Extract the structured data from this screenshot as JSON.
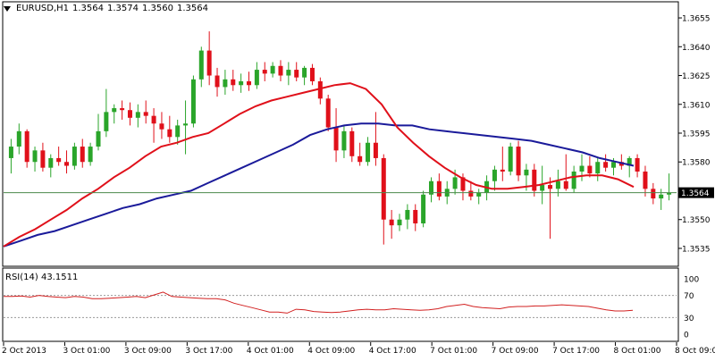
{
  "header": {
    "symbol": "EURUSD,H1",
    "open": "1.3564",
    "high": "1.3574",
    "low": "1.3560",
    "close": "1.3564"
  },
  "rsi": {
    "label": "RSI(14) 43.1511",
    "levels": [
      "100",
      "70",
      "30",
      "0"
    ]
  },
  "current_price": "1.3564",
  "colors": {
    "bull": "#2aa52a",
    "bear": "#e0101a",
    "ma_fast": "#e0101a",
    "ma_slow": "#1a1a9a",
    "rsi": "#d22020",
    "price_line": "#4c8a4c"
  },
  "chart_data": [
    {
      "type": "candlestick",
      "title": "EURUSD,H1",
      "y_ticks": [
        "1.3655",
        "1.3640",
        "1.3625",
        "1.3610",
        "1.3595",
        "1.3580",
        "1.3565",
        "1.3550",
        "1.3535"
      ],
      "ylim": [
        1.3528,
        1.3662
      ],
      "x_ticks": [
        "2 Oct 2013",
        "3 Oct 01:00",
        "3 Oct 09:00",
        "3 Oct 17:00",
        "4 Oct 01:00",
        "4 Oct 09:00",
        "4 Oct 17:00",
        "7 Oct 01:00",
        "7 Oct 09:00",
        "7 Oct 17:00",
        "8 Oct 01:00",
        "8 Oct 09:00"
      ],
      "candles": [
        [
          1.3582,
          1.3592,
          1.3574,
          1.3588
        ],
        [
          1.3588,
          1.36,
          1.3584,
          1.3596
        ],
        [
          1.3596,
          1.3597,
          1.3577,
          1.358
        ],
        [
          1.358,
          1.3588,
          1.3575,
          1.3586
        ],
        [
          1.3586,
          1.359,
          1.3575,
          1.3577
        ],
        [
          1.3577,
          1.3584,
          1.3572,
          1.3582
        ],
        [
          1.3582,
          1.3588,
          1.3578,
          1.358
        ],
        [
          1.358,
          1.3586,
          1.3574,
          1.3578
        ],
        [
          1.3578,
          1.359,
          1.3576,
          1.3588
        ],
        [
          1.3588,
          1.3592,
          1.3577,
          1.358
        ],
        [
          1.358,
          1.359,
          1.3578,
          1.3588
        ],
        [
          1.3588,
          1.3605,
          1.3586,
          1.3596
        ],
        [
          1.3596,
          1.3618,
          1.3593,
          1.3606
        ],
        [
          1.3606,
          1.361,
          1.36,
          1.3608
        ],
        [
          1.3608,
          1.3612,
          1.3602,
          1.3607
        ],
        [
          1.3607,
          1.3611,
          1.3599,
          1.3603
        ],
        [
          1.3603,
          1.361,
          1.3598,
          1.3606
        ],
        [
          1.3606,
          1.3612,
          1.36,
          1.3604
        ],
        [
          1.3604,
          1.3608,
          1.359,
          1.36
        ],
        [
          1.36,
          1.3606,
          1.3592,
          1.3597
        ],
        [
          1.3597,
          1.3604,
          1.359,
          1.3593
        ],
        [
          1.3593,
          1.3602,
          1.3589,
          1.3599
        ],
        [
          1.3599,
          1.3612,
          1.3584,
          1.36
        ],
        [
          1.36,
          1.3625,
          1.3598,
          1.3623
        ],
        [
          1.3623,
          1.364,
          1.3619,
          1.3638
        ],
        [
          1.3638,
          1.3648,
          1.362,
          1.3625
        ],
        [
          1.3625,
          1.3629,
          1.3614,
          1.3619
        ],
        [
          1.3619,
          1.3628,
          1.3615,
          1.3623
        ],
        [
          1.3623,
          1.3628,
          1.3617,
          1.362
        ],
        [
          1.362,
          1.3626,
          1.3616,
          1.3622
        ],
        [
          1.3622,
          1.3627,
          1.3617,
          1.362
        ],
        [
          1.362,
          1.3632,
          1.3618,
          1.3628
        ],
        [
          1.3628,
          1.3632,
          1.3622,
          1.3626
        ],
        [
          1.3626,
          1.3632,
          1.3624,
          1.363
        ],
        [
          1.363,
          1.3633,
          1.3622,
          1.3625
        ],
        [
          1.3625,
          1.3632,
          1.362,
          1.3628
        ],
        [
          1.3628,
          1.3632,
          1.3622,
          1.3624
        ],
        [
          1.3624,
          1.363,
          1.362,
          1.3629
        ],
        [
          1.3629,
          1.3631,
          1.362,
          1.3622
        ],
        [
          1.3622,
          1.3624,
          1.361,
          1.3613
        ],
        [
          1.3613,
          1.3615,
          1.3596,
          1.3598
        ],
        [
          1.3598,
          1.3608,
          1.358,
          1.3586
        ],
        [
          1.3586,
          1.3599,
          1.3582,
          1.3596
        ],
        [
          1.3596,
          1.3598,
          1.358,
          1.3583
        ],
        [
          1.3583,
          1.359,
          1.3578,
          1.358
        ],
        [
          1.358,
          1.3593,
          1.3578,
          1.359
        ],
        [
          1.359,
          1.3606,
          1.3578,
          1.3582
        ],
        [
          1.3582,
          1.3584,
          1.3537,
          1.355
        ],
        [
          1.355,
          1.3555,
          1.354,
          1.3547
        ],
        [
          1.3547,
          1.3553,
          1.3544,
          1.355
        ],
        [
          1.355,
          1.3558,
          1.3545,
          1.3555
        ],
        [
          1.3555,
          1.3558,
          1.3544,
          1.3548
        ],
        [
          1.3548,
          1.3565,
          1.3546,
          1.3563
        ],
        [
          1.3563,
          1.3572,
          1.3559,
          1.357
        ],
        [
          1.357,
          1.3574,
          1.356,
          1.3562
        ],
        [
          1.3562,
          1.357,
          1.3558,
          1.3566
        ],
        [
          1.3566,
          1.3576,
          1.3563,
          1.3572
        ],
        [
          1.3572,
          1.3574,
          1.356,
          1.3565
        ],
        [
          1.3565,
          1.357,
          1.356,
          1.3562
        ],
        [
          1.3562,
          1.3566,
          1.3558,
          1.3564
        ],
        [
          1.3564,
          1.3573,
          1.356,
          1.357
        ],
        [
          1.357,
          1.3578,
          1.3565,
          1.3576
        ],
        [
          1.3576,
          1.3588,
          1.357,
          1.3575
        ],
        [
          1.3575,
          1.359,
          1.3573,
          1.3588
        ],
        [
          1.3588,
          1.3591,
          1.357,
          1.3573
        ],
        [
          1.3573,
          1.3579,
          1.3565,
          1.3576
        ],
        [
          1.3576,
          1.3579,
          1.3562,
          1.3565
        ],
        [
          1.3565,
          1.3578,
          1.3558,
          1.3568
        ],
        [
          1.3568,
          1.3572,
          1.354,
          1.3566
        ],
        [
          1.3566,
          1.3576,
          1.3562,
          1.357
        ],
        [
          1.357,
          1.3584,
          1.3565,
          1.3566
        ],
        [
          1.3566,
          1.3578,
          1.3564,
          1.3575
        ],
        [
          1.3575,
          1.3584,
          1.357,
          1.3578
        ],
        [
          1.3578,
          1.3583,
          1.3572,
          1.3574
        ],
        [
          1.3574,
          1.3582,
          1.357,
          1.358
        ],
        [
          1.358,
          1.3584,
          1.3575,
          1.3577
        ],
        [
          1.3577,
          1.3582,
          1.3573,
          1.358
        ],
        [
          1.358,
          1.3584,
          1.3576,
          1.3578
        ],
        [
          1.3578,
          1.3583,
          1.3572,
          1.3582
        ],
        [
          1.3582,
          1.3584,
          1.3572,
          1.3575
        ],
        [
          1.3575,
          1.3578,
          1.3562,
          1.3566
        ],
        [
          1.3566,
          1.3569,
          1.3558,
          1.3561
        ],
        [
          1.3561,
          1.3566,
          1.3555,
          1.3563
        ],
        [
          1.3563,
          1.3574,
          1.356,
          1.3564
        ]
      ],
      "ma_fast": [
        1.3536,
        1.3541,
        1.3545,
        1.355,
        1.3555,
        1.3561,
        1.3566,
        1.3572,
        1.3577,
        1.3583,
        1.3588,
        1.359,
        1.3593,
        1.3595,
        1.36,
        1.3605,
        1.3609,
        1.3612,
        1.3614,
        1.3616,
        1.3618,
        1.362,
        1.3621,
        1.3618,
        1.361,
        1.3598,
        1.359,
        1.3583,
        1.3577,
        1.3572,
        1.3568,
        1.3566,
        1.3566,
        1.3567,
        1.3568,
        1.357,
        1.3572,
        1.3573,
        1.3573,
        1.3571,
        1.3567
      ],
      "ma_slow": [
        1.3536,
        1.3539,
        1.3542,
        1.3544,
        1.3547,
        1.355,
        1.3553,
        1.3556,
        1.3558,
        1.3561,
        1.3563,
        1.3565,
        1.3569,
        1.3573,
        1.3577,
        1.3581,
        1.3585,
        1.3589,
        1.3594,
        1.3597,
        1.3599,
        1.36,
        1.36,
        1.3599,
        1.3599,
        1.3597,
        1.3596,
        1.3595,
        1.3594,
        1.3593,
        1.3592,
        1.3591,
        1.3589,
        1.3587,
        1.3585,
        1.3582,
        1.358,
        1.3578
      ]
    },
    {
      "type": "line",
      "title": "RSI(14) 43.1511",
      "ylim": [
        0,
        100
      ],
      "y_ticks": [
        "100",
        "70",
        "30",
        "0"
      ],
      "levels": [
        70,
        30
      ],
      "values": [
        68,
        68,
        69,
        67,
        70,
        68,
        67,
        66,
        68,
        67,
        64,
        64,
        65,
        66,
        67,
        68,
        66,
        71,
        76,
        68,
        67,
        66,
        65,
        64,
        64,
        62,
        56,
        52,
        48,
        44,
        40,
        40,
        38,
        45,
        44,
        41,
        40,
        39,
        40,
        42,
        44,
        45,
        44,
        44,
        46,
        45,
        44,
        43,
        44,
        46,
        50,
        52,
        54,
        50,
        48,
        47,
        46,
        49,
        50,
        50,
        51,
        51,
        52,
        53,
        52,
        51,
        50,
        47,
        44,
        42,
        42,
        43
      ]
    }
  ]
}
